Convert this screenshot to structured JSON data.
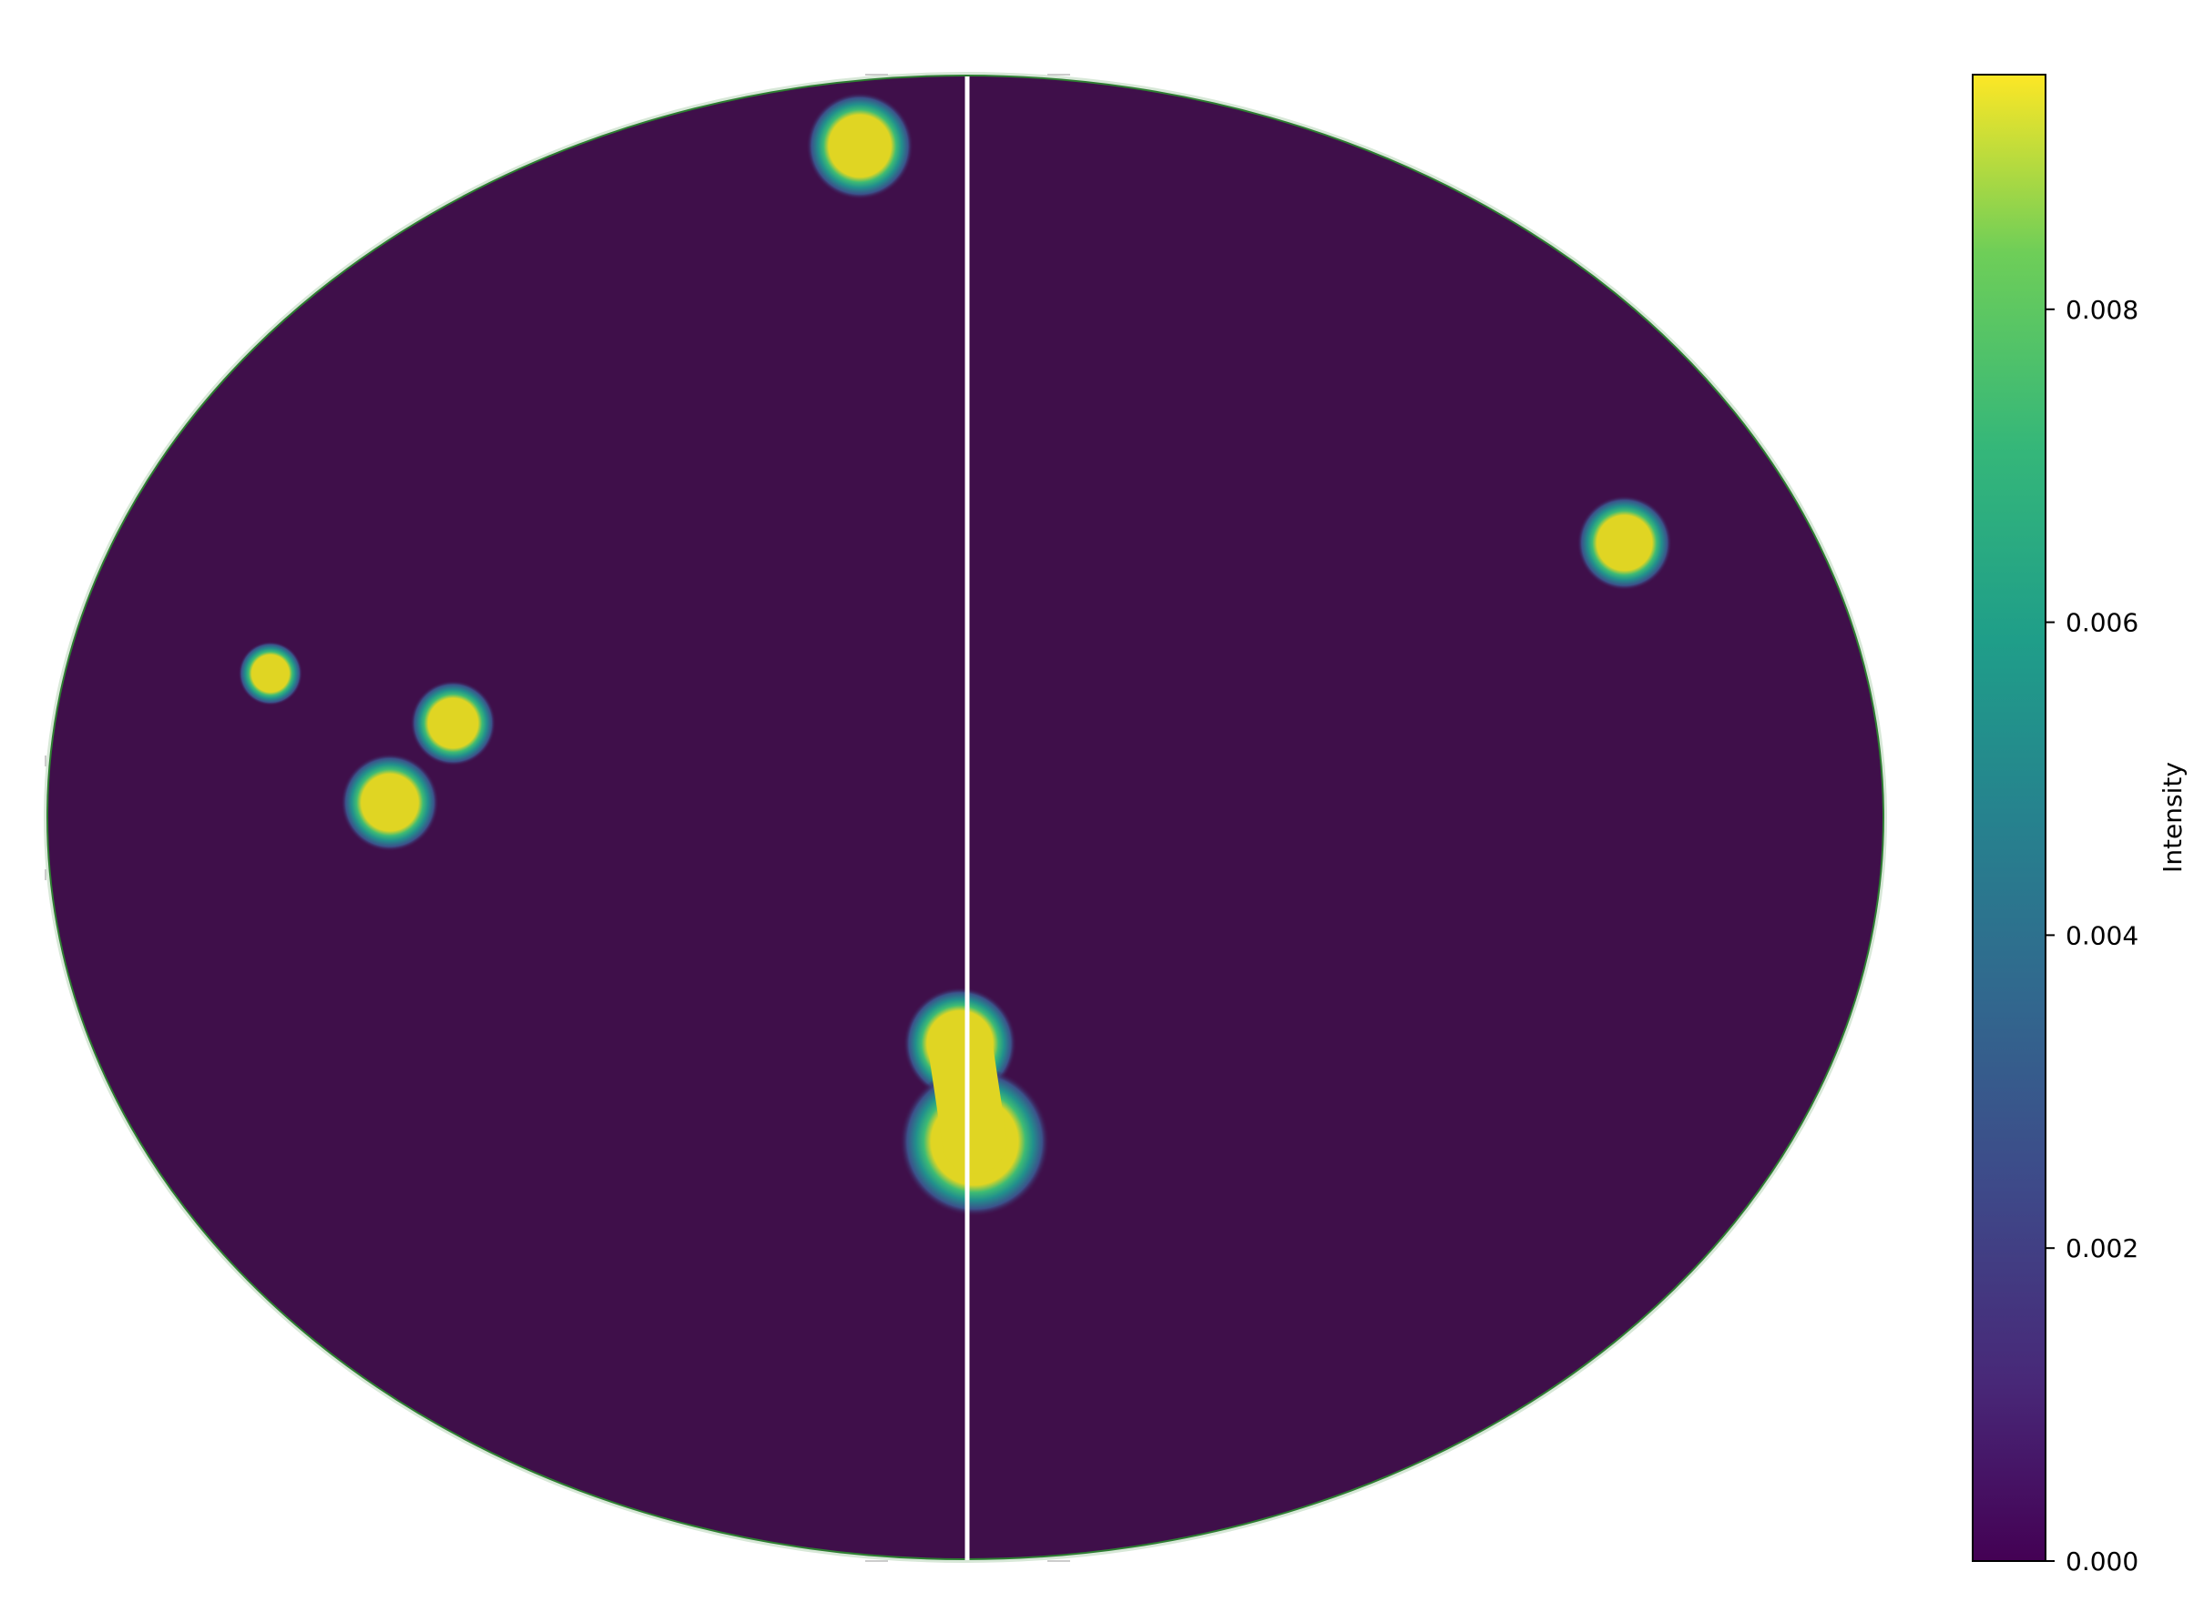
{
  "chart_data": {
    "type": "heatmap",
    "projection": "all-sky ellipse (Mollweide-style)",
    "title": "",
    "xlabel": "",
    "ylabel": "",
    "background_value": 0.0,
    "background_color": "#3f0f4a",
    "meridian_line_color": "#ffffff",
    "colorbar": {
      "label": "Intensity",
      "colormap": "viridis",
      "range": [
        0.0,
        0.0095
      ],
      "ticks": [
        {
          "value": 0.0,
          "label": "0.000"
        },
        {
          "value": 0.002,
          "label": "0.002"
        },
        {
          "value": 0.004,
          "label": "0.004"
        },
        {
          "value": 0.006,
          "label": "0.006"
        },
        {
          "value": 0.008,
          "label": "0.008"
        }
      ]
    },
    "hotspots": [
      {
        "id": "top",
        "u": -0.115,
        "v": 0.905,
        "r": 0.035,
        "value": 0.0093
      },
      {
        "id": "right",
        "u": 0.718,
        "v": 0.37,
        "r": 0.031,
        "value": 0.0093
      },
      {
        "id": "left-small",
        "u": -0.757,
        "v": 0.194,
        "r": 0.021,
        "value": 0.0093
      },
      {
        "id": "left-mid",
        "u": -0.558,
        "v": 0.127,
        "r": 0.028,
        "value": 0.0093
      },
      {
        "id": "left-low",
        "u": -0.627,
        "v": 0.02,
        "r": 0.032,
        "value": 0.0093
      },
      {
        "id": "center-upper",
        "u": -0.006,
        "v": -0.305,
        "r": 0.037,
        "value": 0.0093
      },
      {
        "id": "center-lower",
        "u": 0.01,
        "v": -0.437,
        "r": 0.049,
        "value": 0.0093
      }
    ]
  }
}
